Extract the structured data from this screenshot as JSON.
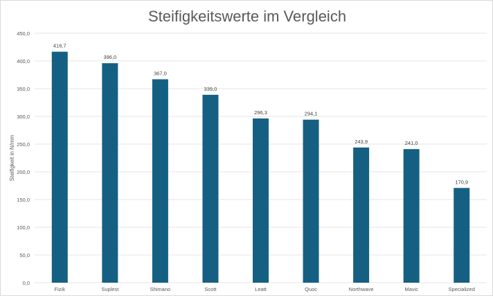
{
  "chart_data": {
    "type": "bar",
    "title": "Steifigkeitswerte im Vergleich",
    "xlabel": "",
    "ylabel": "Steifigkeit in N/mm",
    "categories": [
      "Fizik",
      "Suplest",
      "Shimano",
      "Scott",
      "Leatt",
      "Quoc",
      "Northwave",
      "Mavic",
      "Specialized"
    ],
    "values": [
      416.7,
      396.0,
      367.0,
      339.0,
      296.3,
      294.1,
      243.9,
      241.0,
      170.9
    ],
    "data_labels": [
      "416,7",
      "396,0",
      "367,0",
      "339,0",
      "296,3",
      "294,1",
      "243,9",
      "241,0",
      "170,9"
    ],
    "ylim": [
      0,
      450
    ],
    "yticks": [
      "0,0",
      "50,0",
      "100,0",
      "150,0",
      "200,0",
      "250,0",
      "300,0",
      "350,0",
      "400,0",
      "450,0"
    ],
    "grid": true,
    "legend": "none",
    "colors": {
      "bar": "#156082",
      "grid": "#e4e4e4",
      "text": "#595959"
    }
  }
}
